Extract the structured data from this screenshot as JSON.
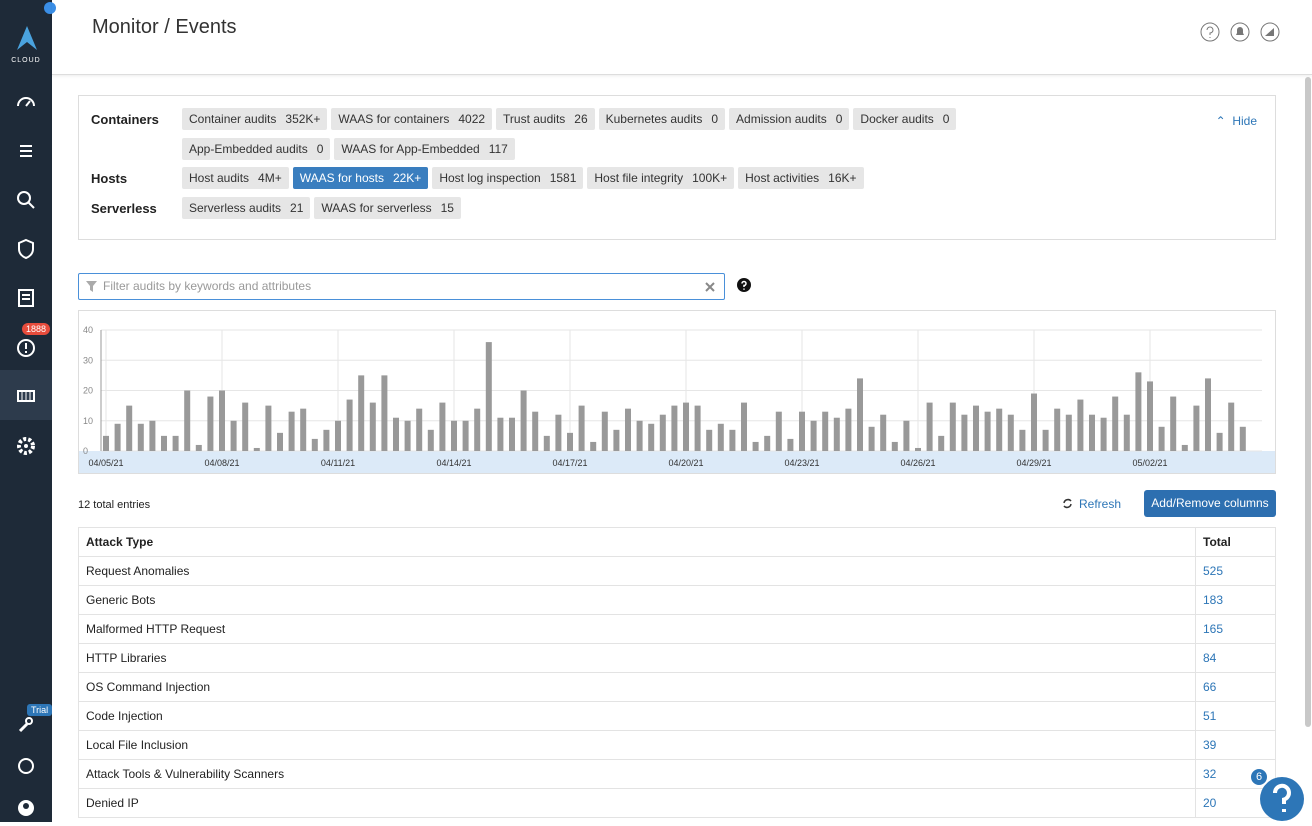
{
  "header": {
    "title": "Monitor / Events"
  },
  "sidebar": {
    "logo": "CLOUD",
    "alerts_badge": "1888",
    "trial_badge": "Trial"
  },
  "filters": {
    "hide": "Hide",
    "groups": [
      {
        "label": "Containers",
        "chips": [
          {
            "name": "Container audits",
            "count": "352K+"
          },
          {
            "name": "WAAS for containers",
            "count": "4022"
          },
          {
            "name": "Trust audits",
            "count": "26"
          },
          {
            "name": "Kubernetes audits",
            "count": "0"
          },
          {
            "name": "Admission audits",
            "count": "0"
          },
          {
            "name": "Docker audits",
            "count": "0"
          },
          {
            "name": "App-Embedded audits",
            "count": "0"
          },
          {
            "name": "WAAS for App-Embedded",
            "count": "117"
          }
        ]
      },
      {
        "label": "Hosts",
        "chips": [
          {
            "name": "Host audits",
            "count": "4M+"
          },
          {
            "name": "WAAS for hosts",
            "count": "22K+",
            "active": true
          },
          {
            "name": "Host log inspection",
            "count": "1581"
          },
          {
            "name": "Host file integrity",
            "count": "100K+"
          },
          {
            "name": "Host activities",
            "count": "16K+"
          }
        ]
      },
      {
        "label": "Serverless",
        "chips": [
          {
            "name": "Serverless audits",
            "count": "21"
          },
          {
            "name": "WAAS for serverless",
            "count": "15"
          }
        ]
      }
    ]
  },
  "search": {
    "placeholder": "Filter audits by keywords and attributes"
  },
  "chart_data": {
    "type": "bar",
    "color": "#999999",
    "grid": true,
    "ylim": [
      0,
      40
    ],
    "yticks": [
      0,
      10,
      20,
      30,
      40
    ],
    "categories": [
      "04/05/21",
      null,
      null,
      null,
      null,
      null,
      null,
      null,
      null,
      null,
      "04/08/21",
      null,
      null,
      null,
      null,
      null,
      null,
      null,
      null,
      null,
      "04/11/21",
      null,
      null,
      null,
      null,
      null,
      null,
      null,
      null,
      null,
      "04/14/21",
      null,
      null,
      null,
      null,
      null,
      null,
      null,
      null,
      null,
      "04/17/21",
      null,
      null,
      null,
      null,
      null,
      null,
      null,
      null,
      null,
      "04/20/21",
      null,
      null,
      null,
      null,
      null,
      null,
      null,
      null,
      null,
      "04/23/21",
      null,
      null,
      null,
      null,
      null,
      null,
      null,
      null,
      null,
      "04/26/21",
      null,
      null,
      null,
      null,
      null,
      null,
      null,
      null,
      null,
      "04/29/21",
      null,
      null,
      null,
      null,
      null,
      null,
      null,
      null,
      null,
      "05/02/21",
      null,
      null,
      null,
      null,
      null,
      null,
      null,
      null
    ],
    "values": [
      5,
      9,
      15,
      9,
      10,
      5,
      5,
      20,
      2,
      18,
      20,
      10,
      16,
      1,
      15,
      6,
      13,
      14,
      4,
      7,
      10,
      17,
      25,
      16,
      25,
      11,
      10,
      14,
      7,
      16,
      10,
      10,
      14,
      36,
      11,
      11,
      20,
      13,
      5,
      12,
      6,
      15,
      3,
      13,
      7,
      14,
      10,
      9,
      12,
      15,
      16,
      15,
      7,
      9,
      7,
      16,
      3,
      5,
      13,
      4,
      13,
      10,
      13,
      11,
      14,
      24,
      8,
      12,
      3,
      10,
      1,
      16,
      5,
      16,
      12,
      15,
      13,
      14,
      12,
      7,
      19,
      7,
      14,
      12,
      17,
      12,
      11,
      18,
      12,
      26,
      23,
      8,
      18,
      2,
      15,
      24,
      6,
      16,
      8
    ]
  },
  "table": {
    "entries": "12 total entries",
    "refresh": "Refresh",
    "columns_button": "Add/Remove columns",
    "headers": [
      "Attack Type",
      "Total"
    ],
    "rows": [
      [
        "Request Anomalies",
        525
      ],
      [
        "Generic Bots",
        183
      ],
      [
        "Malformed HTTP Request",
        165
      ],
      [
        "HTTP Libraries",
        84
      ],
      [
        "OS Command Injection",
        66
      ],
      [
        "Code Injection",
        51
      ],
      [
        "Local File Inclusion",
        39
      ],
      [
        "Attack Tools & Vulnerability Scanners",
        32
      ],
      [
        "Denied IP",
        20
      ]
    ]
  },
  "help_widget": {
    "badge": "6"
  }
}
